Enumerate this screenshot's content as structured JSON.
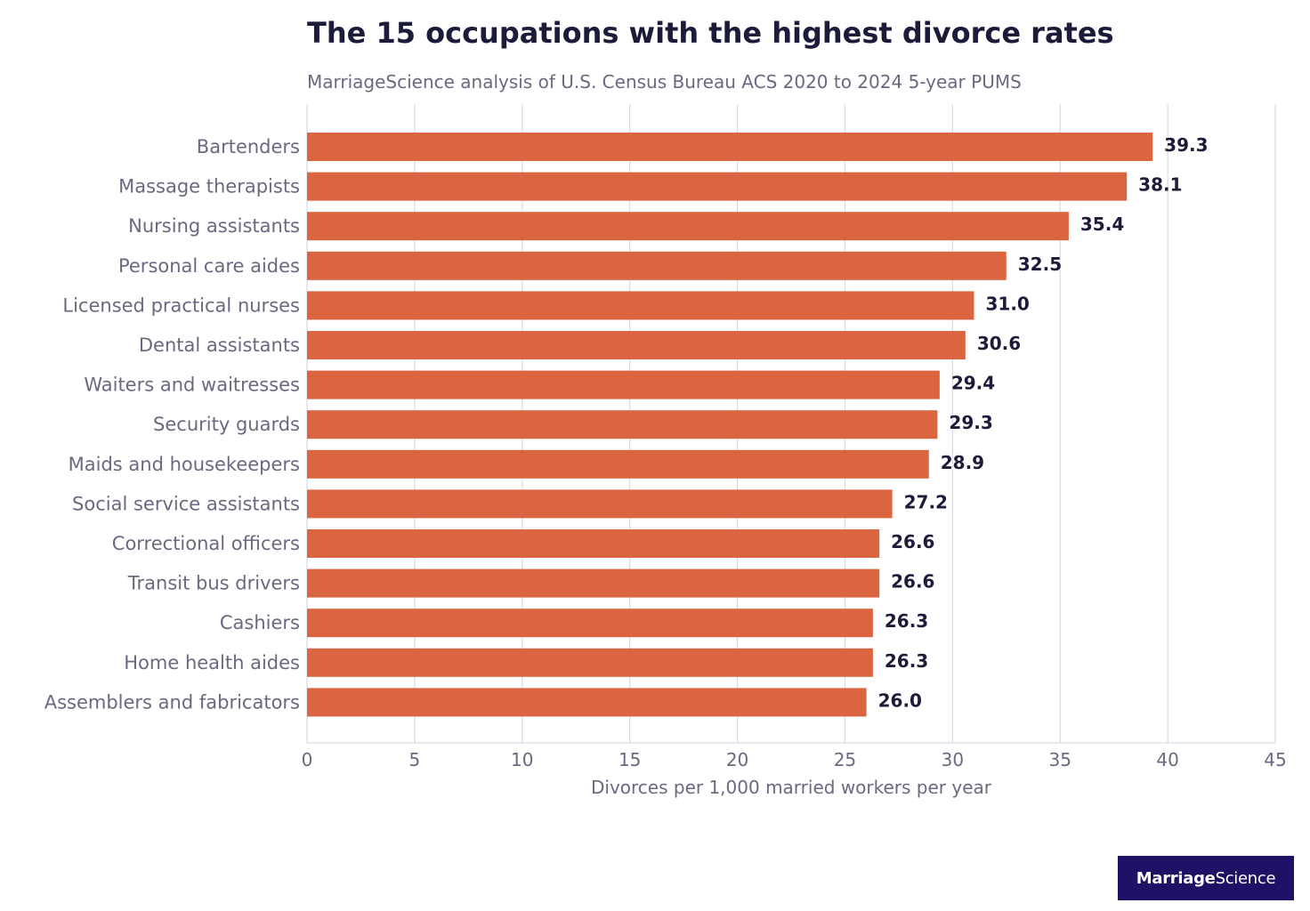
{
  "title": "The 15 occupations with the highest divorce rates",
  "subtitle": "MarriageScience analysis of U.S. Census Bureau ACS 2020 to 2024 5-year PUMS",
  "logo": {
    "part1": "Marriage",
    "part2": "Science"
  },
  "colors": {
    "bar": "#db6540",
    "label": "#1c1b3a",
    "axis_text": "#6b6880",
    "grid": "#d9d9e6",
    "logo_bg": "#1e1166"
  },
  "chart_data": {
    "type": "bar",
    "orientation": "horizontal",
    "title": "The 15 occupations with the highest divorce rates",
    "subtitle": "MarriageScience analysis of U.S. Census Bureau ACS 2020 to 2024 5-year PUMS",
    "xlabel": "Divorces per 1,000 married workers per year",
    "ylabel": "",
    "xlim": [
      0,
      45
    ],
    "xticks": [
      0,
      5,
      10,
      15,
      20,
      25,
      30,
      35,
      40,
      45
    ],
    "grid": true,
    "categories": [
      "Bartenders",
      "Massage therapists",
      "Nursing assistants",
      "Personal care aides",
      "Licensed practical nurses",
      "Dental assistants",
      "Waiters and waitresses",
      "Security guards",
      "Maids and housekeepers",
      "Social service assistants",
      "Correctional officers",
      "Transit bus drivers",
      "Cashiers",
      "Home health aides",
      "Assemblers and fabricators"
    ],
    "values": [
      39.3,
      38.1,
      35.4,
      32.5,
      31.0,
      30.6,
      29.4,
      29.3,
      28.9,
      27.2,
      26.6,
      26.6,
      26.3,
      26.3,
      26.0
    ],
    "value_labels": [
      "39.3",
      "38.1",
      "35.4",
      "32.5",
      "31.0",
      "30.6",
      "29.4",
      "29.3",
      "28.9",
      "27.2",
      "26.6",
      "26.6",
      "26.3",
      "26.3",
      "26.0"
    ]
  }
}
